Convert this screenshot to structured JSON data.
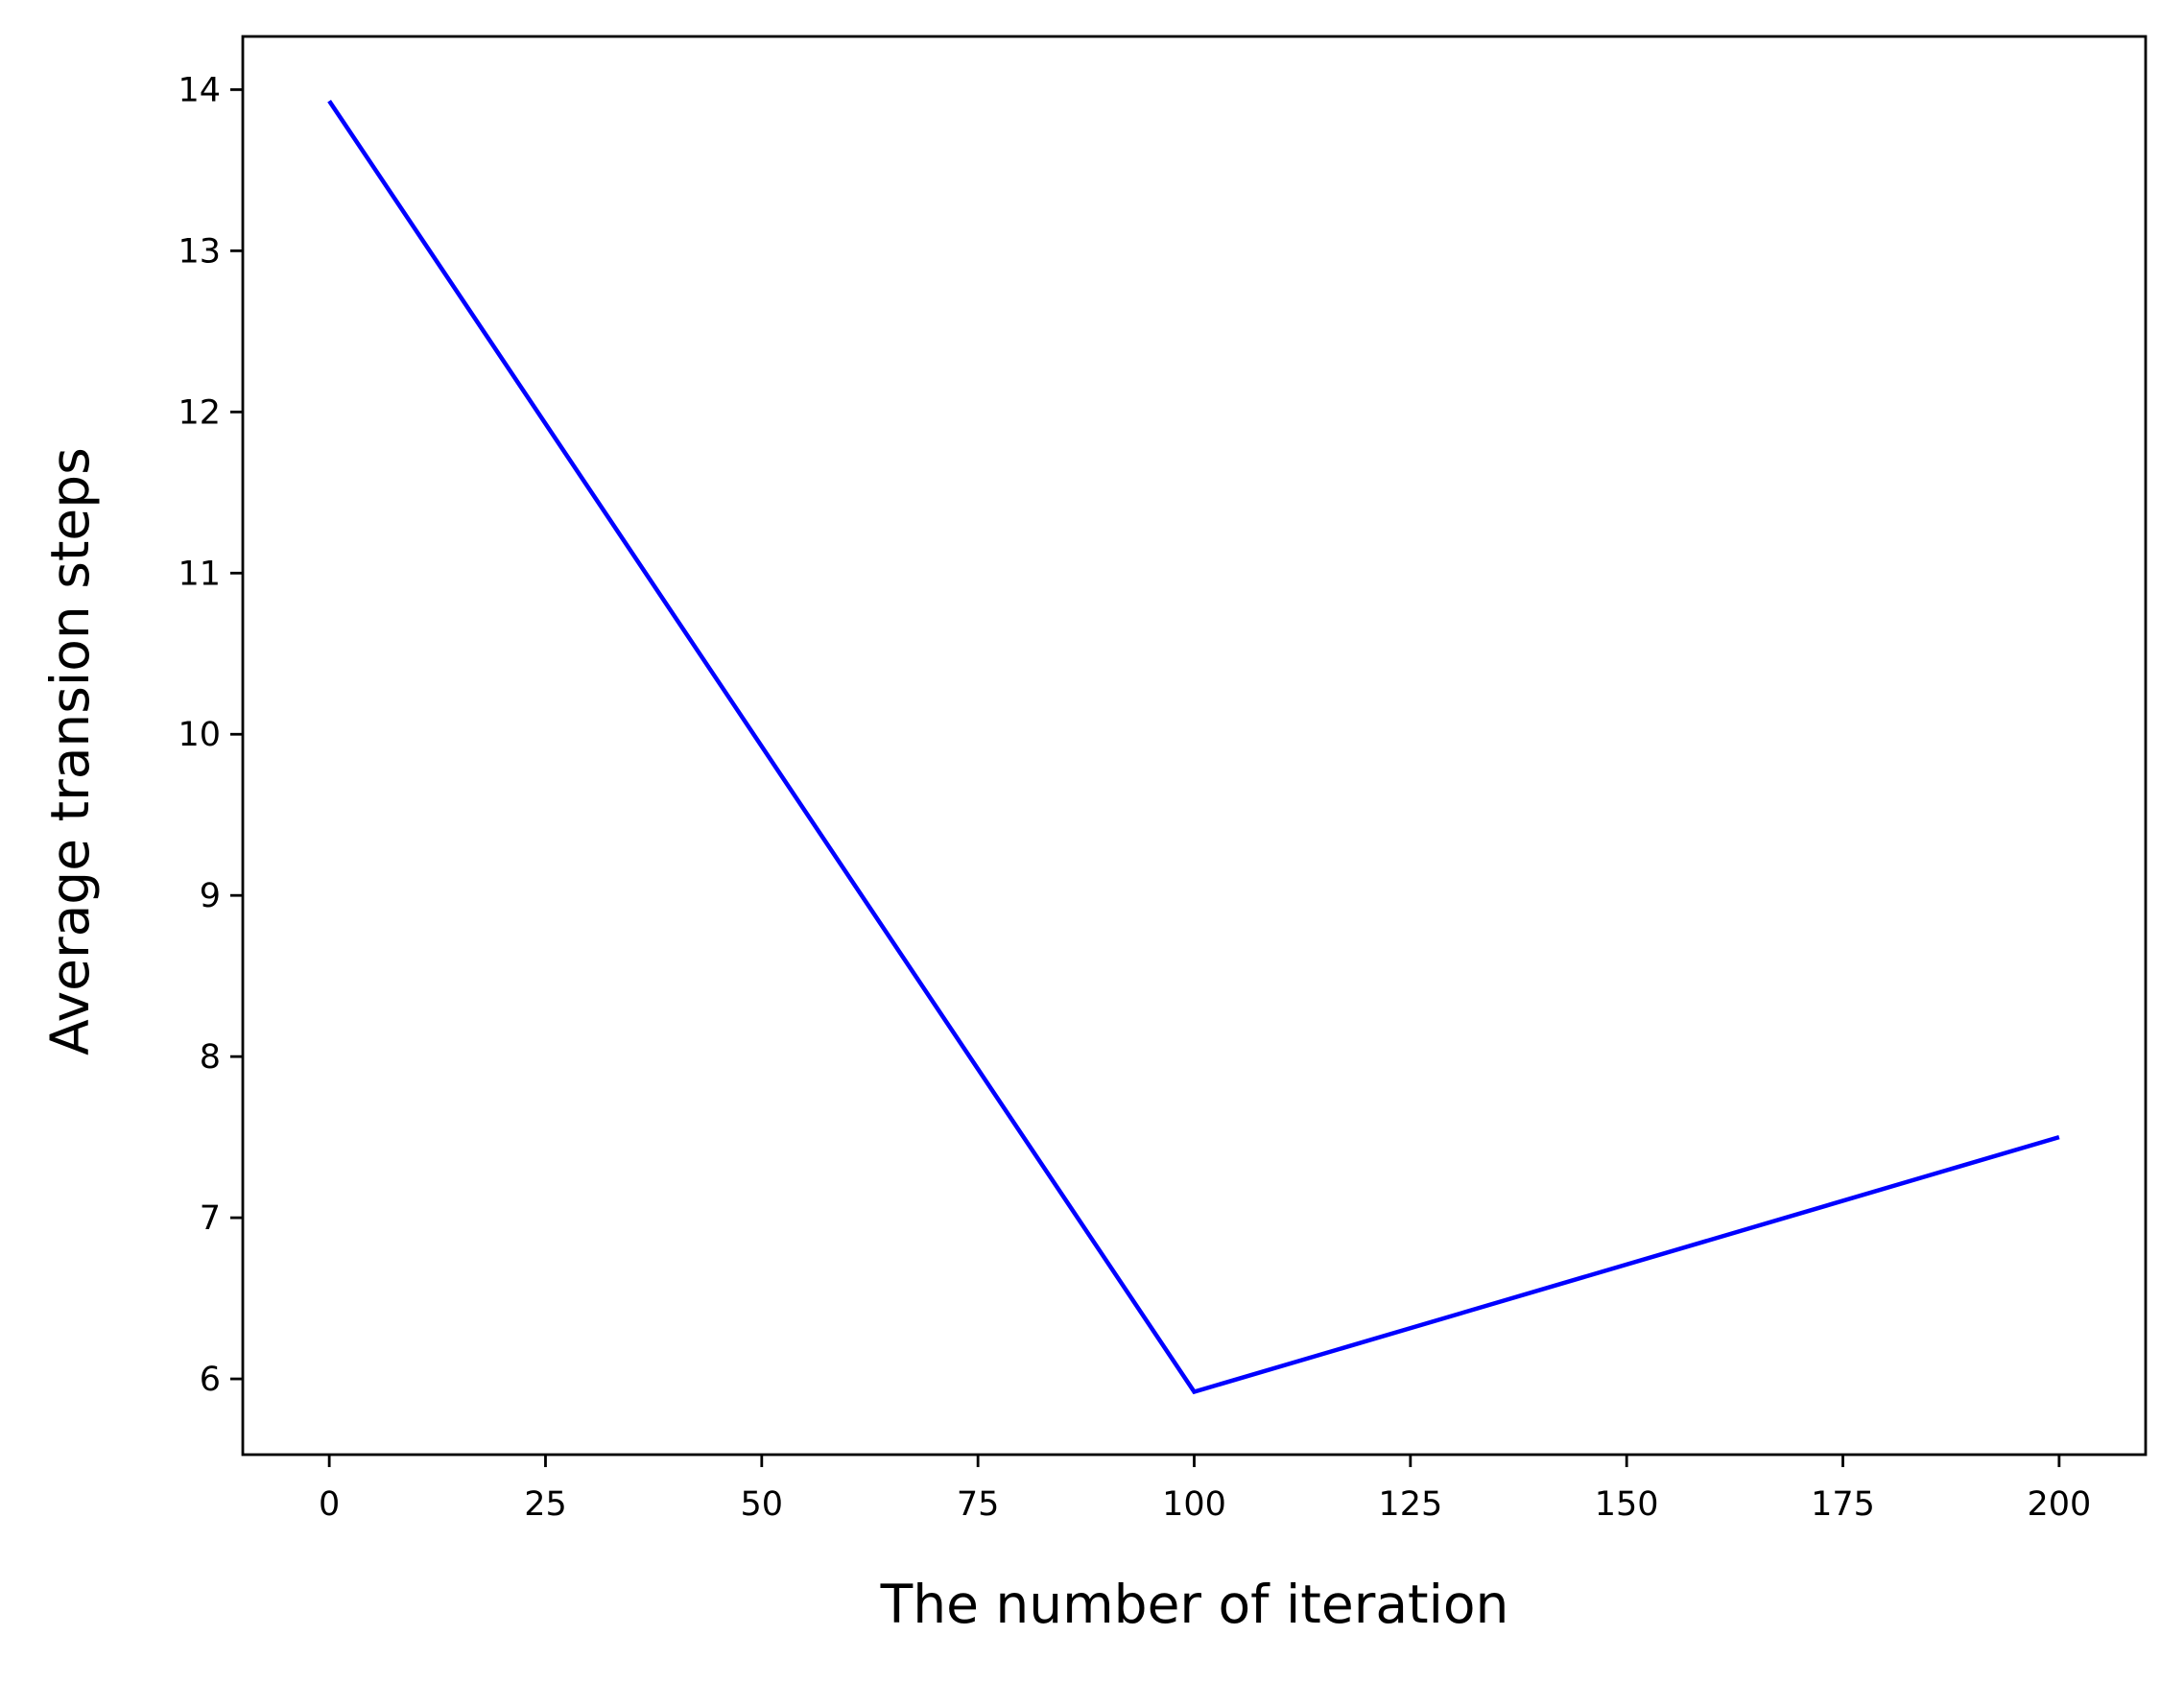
{
  "chart_data": {
    "type": "line",
    "title": "",
    "xlabel": "The number of iteration",
    "ylabel": "Average transion steps",
    "xlim": [
      -10,
      210
    ],
    "ylim": [
      5.53,
      14.33
    ],
    "xticks": [
      0,
      25,
      50,
      75,
      100,
      125,
      150,
      175,
      200
    ],
    "yticks": [
      6,
      7,
      8,
      9,
      10,
      11,
      12,
      13,
      14
    ],
    "grid": false,
    "legend": "none",
    "series": [
      {
        "x": [
          0,
          100,
          200
        ],
        "y": [
          13.93,
          5.92,
          7.5
        ],
        "color": "#0000ff"
      }
    ]
  }
}
